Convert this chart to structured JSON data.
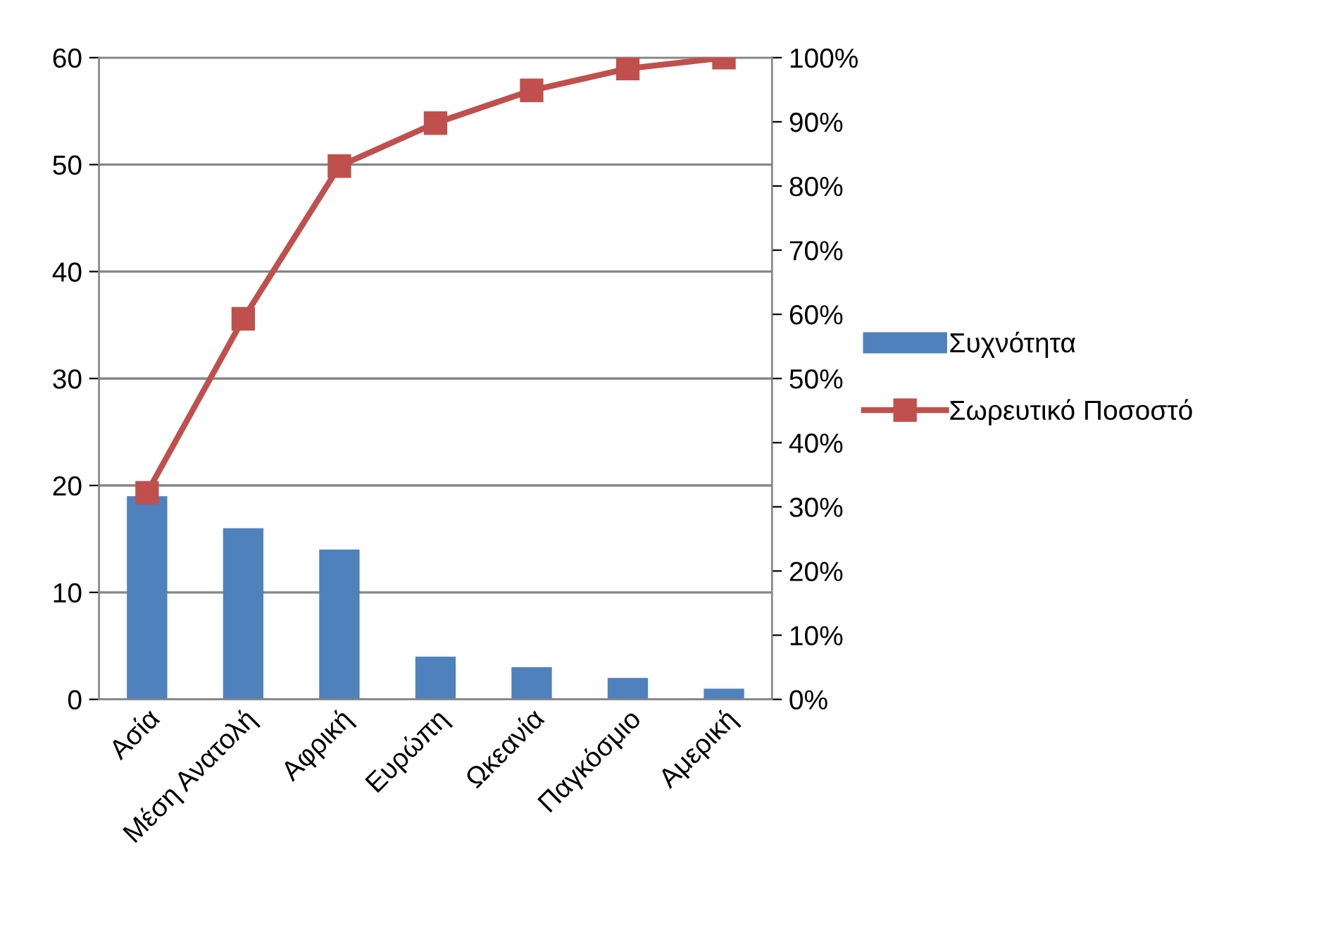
{
  "chart_data": {
    "type": "bar",
    "categories": [
      "Ασία",
      "Μέση Ανατολή",
      "Αφρική",
      "Ευρώπη",
      "Ωκεανία",
      "Παγκόσμιο",
      "Αμερική"
    ],
    "series": [
      {
        "name": "Συχνότητα",
        "color": "#4f81bd",
        "values": [
          19,
          16,
          14,
          4,
          3,
          2,
          1
        ]
      },
      {
        "name": "Σωρευτικό Ποσοστό",
        "type": "line",
        "axis": "y2",
        "color": "#c0504d",
        "marker": "square",
        "values": [
          32.2,
          59.3,
          83.1,
          89.8,
          94.9,
          98.3,
          100
        ]
      }
    ],
    "ylim": [
      0,
      60
    ],
    "yticks": [
      0,
      10,
      20,
      30,
      40,
      50,
      60
    ],
    "y2lim": [
      0,
      100
    ],
    "y2ticks": [
      {
        "value": 0,
        "label": "0%"
      },
      {
        "value": 10,
        "label": "10%"
      },
      {
        "value": 20,
        "label": "20%"
      },
      {
        "value": 30,
        "label": "30%"
      },
      {
        "value": 40,
        "label": "40%"
      },
      {
        "value": 50,
        "label": "50%"
      },
      {
        "value": 60,
        "label": "60%"
      },
      {
        "value": 70,
        "label": "70%"
      },
      {
        "value": 80,
        "label": "80%"
      },
      {
        "value": 90,
        "label": "90%"
      },
      {
        "value": 100,
        "label": "100%"
      }
    ],
    "grid": "y",
    "legend": "right"
  }
}
